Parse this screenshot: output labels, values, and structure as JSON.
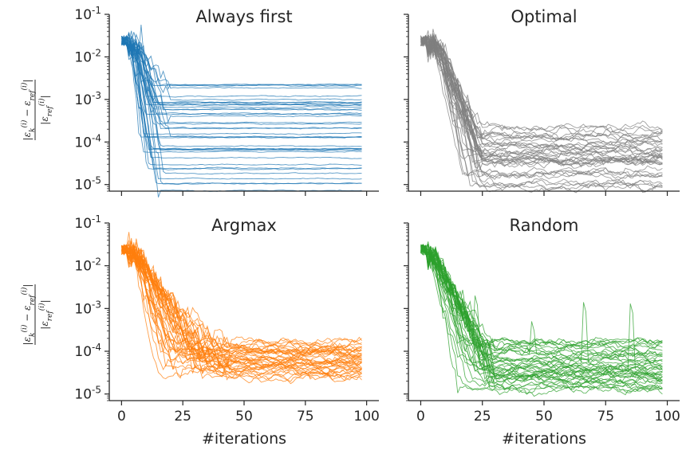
{
  "chart_data": [
    {
      "type": "line",
      "title": "Always first",
      "xlabel": "",
      "ylabel": "|εk(i) − εref(i)| / |εref(i)|",
      "y_scale": "log",
      "xlim": [
        -5,
        105
      ],
      "ylim": [
        7e-06,
        0.1
      ],
      "xticks": [
        0,
        25,
        50,
        75,
        100
      ],
      "show_x_tick_labels": false,
      "yticks": [
        {
          "value": 0.1,
          "base": "10",
          "exp": "-1"
        },
        {
          "value": 0.01,
          "base": "10",
          "exp": "-2"
        },
        {
          "value": 0.001,
          "base": "10",
          "exp": "-3"
        },
        {
          "value": 0.0001,
          "base": "10",
          "exp": "-4"
        },
        {
          "value": 1e-05,
          "base": "10",
          "exp": "-5"
        }
      ],
      "color": "#1f77b4",
      "n_runs": 40,
      "iterations": 99,
      "start_value": 0.018,
      "transition_iteration_range": [
        3,
        25
      ],
      "plateau_values_approx": [
        0.0024,
        0.001,
        0.0007,
        0.0005,
        0.0003,
        0.0002,
        0.00012,
        8e-05,
        6e-05,
        3e-05,
        2e-05,
        9e-06
      ],
      "grid": false
    },
    {
      "type": "line",
      "title": "Optimal",
      "xlabel": "",
      "ylabel": "",
      "y_scale": "log",
      "xlim": [
        -5,
        105
      ],
      "ylim": [
        7e-06,
        0.1
      ],
      "xticks": [
        0,
        25,
        50,
        75,
        100
      ],
      "show_x_tick_labels": false,
      "show_y_tick_labels": false,
      "color": "#7f7f7f",
      "n_runs": 40,
      "iterations": 99,
      "start_value": 0.018,
      "transition_iteration_range": [
        5,
        25
      ],
      "plateau_values_approx": [
        0.00015,
        0.0001,
        6e-05,
        4e-05,
        3e-05,
        2e-05,
        1e-05
      ],
      "grid": false
    },
    {
      "type": "line",
      "title": "Argmax",
      "xlabel": "#iterations",
      "ylabel": "|εk(i) − εref(i)| / |εref(i)|",
      "y_scale": "log",
      "xlim": [
        -5,
        105
      ],
      "ylim": [
        7e-06,
        0.1
      ],
      "xticks": [
        0,
        25,
        50,
        75,
        100
      ],
      "show_x_tick_labels": true,
      "yticks": [
        {
          "value": 0.1,
          "base": "10",
          "exp": "-1"
        },
        {
          "value": 0.01,
          "base": "10",
          "exp": "-2"
        },
        {
          "value": 0.001,
          "base": "10",
          "exp": "-3"
        },
        {
          "value": 0.0001,
          "base": "10",
          "exp": "-4"
        },
        {
          "value": 1e-05,
          "base": "10",
          "exp": "-5"
        }
      ],
      "color": "#ff7f0e",
      "n_runs": 40,
      "iterations": 99,
      "start_value": 0.018,
      "transition_iteration_range": [
        5,
        45
      ],
      "plateau_values_approx": [
        0.00014,
        0.0001,
        7e-05,
        5e-05,
        4e-05,
        3e-05
      ],
      "grid": false
    },
    {
      "type": "line",
      "title": "Random",
      "xlabel": "#iterations",
      "ylabel": "",
      "y_scale": "log",
      "xlim": [
        -5,
        105
      ],
      "ylim": [
        7e-06,
        0.1
      ],
      "xticks": [
        0,
        25,
        50,
        75,
        100
      ],
      "show_x_tick_labels": true,
      "show_y_tick_labels": false,
      "color": "#2ca02c",
      "n_runs": 40,
      "iterations": 99,
      "start_value": 0.018,
      "transition_iteration_range": [
        3,
        30
      ],
      "plateau_values_approx": [
        0.00015,
        0.0001,
        6e-05,
        4e-05,
        3e-05,
        2e-05,
        1.3e-05
      ],
      "spikes_approx": [
        {
          "x": 22,
          "y": 0.002
        },
        {
          "x": 45,
          "y": 0.0005
        },
        {
          "x": 66,
          "y": 0.0014
        },
        {
          "x": 85,
          "y": 0.0013
        }
      ],
      "grid": false
    }
  ]
}
